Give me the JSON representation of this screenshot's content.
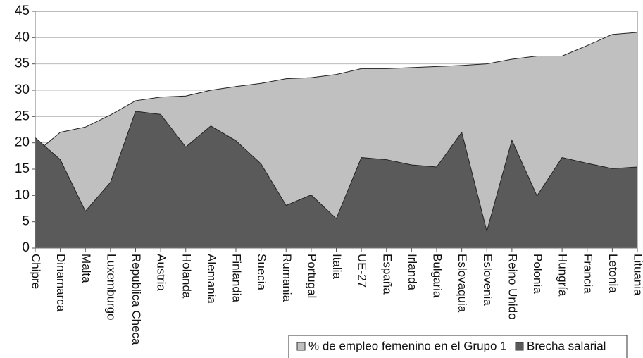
{
  "chart_data": {
    "type": "area",
    "categories": [
      "Chipre",
      "Dinamarca",
      "Malta",
      "Luxemburgo",
      "Republica Checa",
      "Austria",
      "Holanda",
      "Alemania",
      "Finlandia",
      "Suecia",
      "Rumania",
      "Portugal",
      "Italia",
      "UE-27",
      "España",
      "Irlanda",
      "Bulgaria",
      "Eslovaquia",
      "Eslovenia",
      "Reino Unido",
      "Polonia",
      "Hungría",
      "Francia",
      "Letonia",
      "Lituania"
    ],
    "series": [
      {
        "name": "% de empleo femenino en el Grupo 1",
        "color": "#c0c0c0",
        "values": [
          18,
          22,
          23,
          25.3,
          28,
          28.7,
          28.9,
          30,
          30.7,
          31.3,
          32.2,
          32.4,
          33,
          34.1,
          34.1,
          34.3,
          34.5,
          34.7,
          35,
          35.9,
          36.5,
          36.5,
          38.5,
          40.6,
          41
        ]
      },
      {
        "name": "Brecha salarial",
        "color": "#5a5a5a",
        "values": [
          21,
          16.8,
          7,
          12.5,
          26,
          25.4,
          19.2,
          23.2,
          20.4,
          16,
          8.1,
          10.1,
          5.6,
          17.2,
          16.8,
          15.8,
          15.4,
          22,
          3.2,
          20.5,
          9.9,
          17.2,
          16.1,
          15.1,
          15.4
        ]
      }
    ],
    "ylim": [
      0,
      45
    ],
    "yticks": [
      0,
      5,
      10,
      15,
      20,
      25,
      30,
      35,
      40,
      45
    ],
    "grid": true,
    "legend": "bottom-right"
  }
}
